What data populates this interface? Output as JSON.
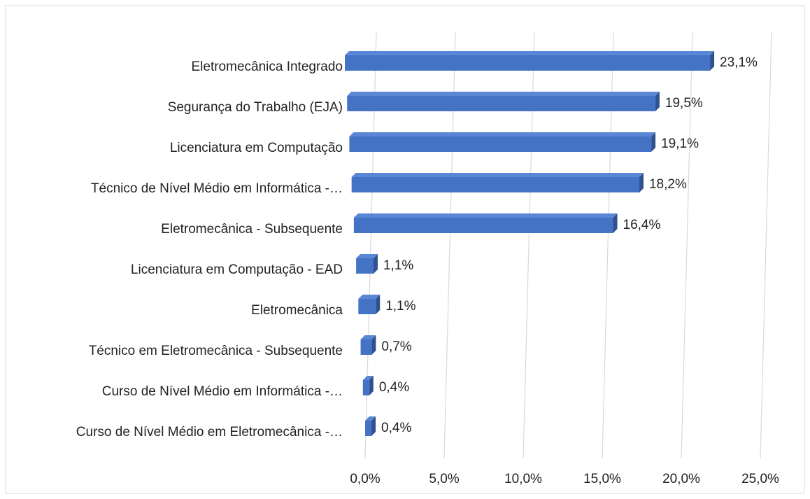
{
  "chart_data": {
    "type": "bar3d_horizontal",
    "categories": [
      "Eletromecânica Integrado",
      "Segurança do Trabalho (EJA)",
      "Licenciatura em Computação",
      "Técnico de Nível Médio em Informática -…",
      "Eletromecânica - Subsequente",
      "Licenciatura em Computação - EAD",
      "Eletromecânica",
      "Técnico em Eletromecânica - Subsequente",
      "Curso de Nível Médio em Informática -…",
      "Curso de Nível Médio em Eletromecânica -…"
    ],
    "values": [
      23.1,
      19.5,
      19.1,
      18.2,
      16.4,
      1.1,
      1.1,
      0.7,
      0.4,
      0.4
    ],
    "value_labels": [
      "23,1%",
      "19,5%",
      "19,1%",
      "18,2%",
      "16,4%",
      "1,1%",
      "1,1%",
      "0,7%",
      "0,4%",
      "0,4%"
    ],
    "color": "#4472c4",
    "xlim": [
      0,
      25
    ],
    "xticks": [
      {
        "value": 0,
        "label": "0,0%"
      },
      {
        "value": 5,
        "label": "5,0%"
      },
      {
        "value": 10,
        "label": "10,0%"
      },
      {
        "value": 15,
        "label": "15,0%"
      },
      {
        "value": 20,
        "label": "20,0%"
      },
      {
        "value": 25,
        "label": "25,0%"
      }
    ],
    "grid": true
  }
}
